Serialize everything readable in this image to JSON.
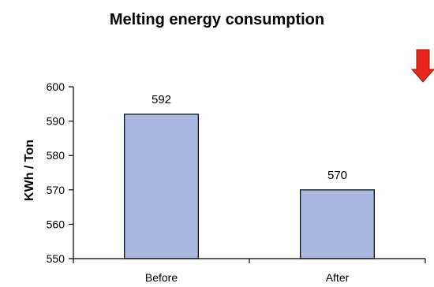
{
  "chart_data": {
    "type": "bar",
    "title": "Melting energy consumption",
    "xlabel": "",
    "ylabel": "KWh / Ton",
    "categories": [
      "Before",
      "After"
    ],
    "values": [
      592,
      570
    ],
    "data_labels": [
      "592",
      "570"
    ],
    "ylim": [
      550,
      600
    ],
    "yticks": [
      550,
      560,
      570,
      580,
      590,
      600
    ],
    "ytick_labels": [
      "550",
      "560",
      "570",
      "580",
      "590",
      "600"
    ],
    "grid": false,
    "legend": "none",
    "bar_color": "#aab8e0",
    "bar_edge_color": "#000000",
    "indicator": {
      "type": "down-arrow",
      "color": "#e8251c",
      "position": "top-right"
    }
  }
}
